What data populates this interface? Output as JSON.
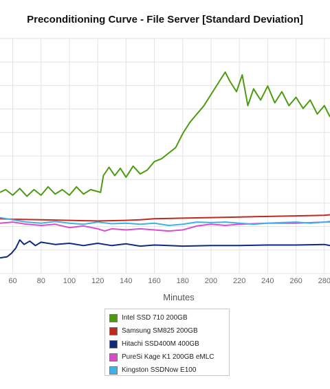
{
  "title": "Preconditioning Curve - File Server [Standard Deviation]",
  "chart_data": {
    "type": "line",
    "title": "Preconditioning Curve - File Server [Standard Deviation]",
    "xlabel": "Minutes",
    "ylabel": "",
    "xlim": [
      51,
      284
    ],
    "ylim": [
      0,
      420
    ],
    "x_ticks": [
      60,
      80,
      100,
      120,
      140,
      160,
      180,
      200,
      220,
      240,
      260,
      280
    ],
    "grid": true,
    "legend_position": "bottom",
    "series": [
      {
        "name": "Intel SSD 710 200GB",
        "color": "#4c9a0e",
        "points": [
          [
            51,
            145
          ],
          [
            55,
            150
          ],
          [
            60,
            140
          ],
          [
            65,
            152
          ],
          [
            70,
            138
          ],
          [
            75,
            150
          ],
          [
            80,
            140
          ],
          [
            85,
            155
          ],
          [
            90,
            142
          ],
          [
            95,
            150
          ],
          [
            100,
            140
          ],
          [
            105,
            155
          ],
          [
            110,
            142
          ],
          [
            115,
            150
          ],
          [
            122,
            145
          ],
          [
            124,
            175
          ],
          [
            128,
            190
          ],
          [
            132,
            175
          ],
          [
            136,
            188
          ],
          [
            140,
            172
          ],
          [
            145,
            192
          ],
          [
            150,
            178
          ],
          [
            155,
            185
          ],
          [
            160,
            200
          ],
          [
            165,
            205
          ],
          [
            170,
            215
          ],
          [
            175,
            225
          ],
          [
            180,
            250
          ],
          [
            185,
            270
          ],
          [
            190,
            285
          ],
          [
            195,
            300
          ],
          [
            200,
            320
          ],
          [
            205,
            340
          ],
          [
            210,
            360
          ],
          [
            213,
            345
          ],
          [
            218,
            325
          ],
          [
            222,
            355
          ],
          [
            226,
            300
          ],
          [
            230,
            330
          ],
          [
            235,
            310
          ],
          [
            240,
            335
          ],
          [
            245,
            305
          ],
          [
            250,
            325
          ],
          [
            255,
            300
          ],
          [
            260,
            315
          ],
          [
            265,
            295
          ],
          [
            270,
            310
          ],
          [
            275,
            285
          ],
          [
            280,
            300
          ],
          [
            284,
            280
          ]
        ]
      },
      {
        "name": "Samsung SM825 200GB",
        "color": "#c0291b",
        "points": [
          [
            51,
            98
          ],
          [
            60,
            97
          ],
          [
            80,
            96
          ],
          [
            100,
            95
          ],
          [
            120,
            94
          ],
          [
            140,
            95
          ],
          [
            150,
            96
          ],
          [
            160,
            98
          ],
          [
            180,
            99
          ],
          [
            200,
            100
          ],
          [
            220,
            101
          ],
          [
            240,
            102
          ],
          [
            260,
            103
          ],
          [
            280,
            104
          ],
          [
            284,
            105
          ]
        ]
      },
      {
        "name": "Hitachi SSD400M 400GB",
        "color": "#0f2a7c",
        "points": [
          [
            51,
            28
          ],
          [
            56,
            30
          ],
          [
            59,
            36
          ],
          [
            62,
            45
          ],
          [
            65,
            60
          ],
          [
            68,
            52
          ],
          [
            72,
            58
          ],
          [
            76,
            50
          ],
          [
            80,
            56
          ],
          [
            90,
            52
          ],
          [
            100,
            54
          ],
          [
            110,
            50
          ],
          [
            120,
            54
          ],
          [
            130,
            50
          ],
          [
            140,
            53
          ],
          [
            150,
            49
          ],
          [
            160,
            51
          ],
          [
            170,
            50
          ],
          [
            180,
            49
          ],
          [
            200,
            50
          ],
          [
            220,
            50
          ],
          [
            240,
            51
          ],
          [
            260,
            51
          ],
          [
            280,
            52
          ],
          [
            284,
            50
          ]
        ]
      },
      {
        "name": "PureSi Kage K1 200GB eMLC",
        "color": "#d94dcb",
        "points": [
          [
            51,
            90
          ],
          [
            60,
            92
          ],
          [
            70,
            88
          ],
          [
            80,
            86
          ],
          [
            90,
            88
          ],
          [
            100,
            82
          ],
          [
            110,
            85
          ],
          [
            120,
            80
          ],
          [
            125,
            76
          ],
          [
            130,
            80
          ],
          [
            140,
            78
          ],
          [
            150,
            80
          ],
          [
            160,
            78
          ],
          [
            170,
            76
          ],
          [
            180,
            78
          ],
          [
            190,
            85
          ],
          [
            200,
            88
          ],
          [
            210,
            86
          ],
          [
            220,
            88
          ],
          [
            240,
            90
          ],
          [
            260,
            90
          ],
          [
            280,
            92
          ],
          [
            284,
            93
          ]
        ]
      },
      {
        "name": "Kingston SSDNow E100",
        "color": "#3fb0e9",
        "points": [
          [
            51,
            100
          ],
          [
            60,
            96
          ],
          [
            70,
            92
          ],
          [
            80,
            90
          ],
          [
            90,
            93
          ],
          [
            100,
            90
          ],
          [
            110,
            88
          ],
          [
            120,
            92
          ],
          [
            130,
            89
          ],
          [
            140,
            90
          ],
          [
            150,
            88
          ],
          [
            160,
            90
          ],
          [
            170,
            86
          ],
          [
            180,
            88
          ],
          [
            190,
            92
          ],
          [
            200,
            91
          ],
          [
            210,
            92
          ],
          [
            220,
            90
          ],
          [
            230,
            88
          ],
          [
            240,
            90
          ],
          [
            250,
            91
          ],
          [
            260,
            92
          ],
          [
            270,
            90
          ],
          [
            280,
            92
          ],
          [
            284,
            92
          ]
        ]
      }
    ]
  }
}
